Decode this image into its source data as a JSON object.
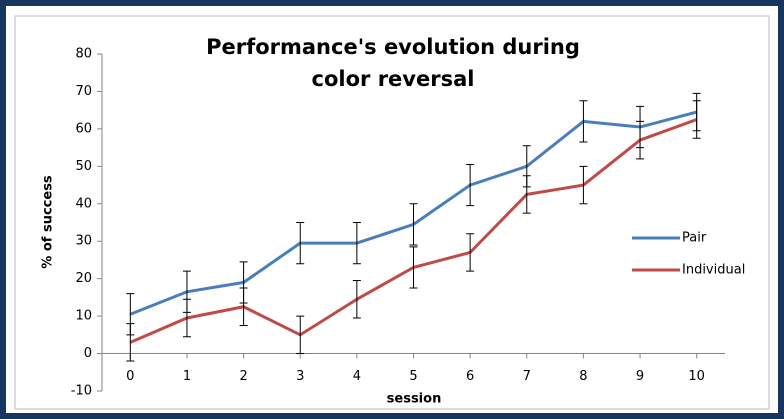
{
  "chart_data": {
    "type": "line",
    "title": "Performance's evolution during color reversal",
    "x_label": "session",
    "y_label": "% of success",
    "x": [
      0,
      1,
      2,
      3,
      4,
      5,
      6,
      7,
      8,
      9,
      10
    ],
    "xlim": [
      -0.5,
      10.5
    ],
    "xticks": [
      0,
      1,
      2,
      3,
      4,
      5,
      6,
      7,
      8,
      9,
      10
    ],
    "ylim": [
      -10,
      80
    ],
    "yticks": [
      -10,
      0,
      10,
      20,
      30,
      40,
      50,
      60,
      70,
      80
    ],
    "grid": false,
    "legend": "right",
    "series": [
      {
        "name": "Pair",
        "color": "#4a7ebb",
        "values": [
          10.5,
          16.5,
          19,
          29.5,
          29.5,
          34.5,
          45,
          50,
          62,
          60.5,
          64.5
        ],
        "errors": [
          5.5,
          5.5,
          5.5,
          5.5,
          5.5,
          5.5,
          5.5,
          5.5,
          5.5,
          5.5,
          5
        ]
      },
      {
        "name": "Individual",
        "color": "#be4b48",
        "values": [
          3,
          9.5,
          12.5,
          5,
          14.5,
          23,
          27,
          42.5,
          45,
          57,
          62.5
        ],
        "errors": [
          5,
          5,
          5,
          5,
          5,
          5.5,
          5,
          5,
          5,
          5,
          5
        ]
      }
    ]
  }
}
